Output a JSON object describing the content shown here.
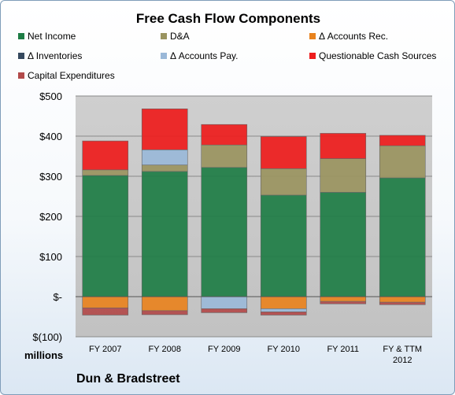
{
  "chart_data": {
    "type": "bar",
    "stacked": true,
    "title": "Free Cash Flow Components",
    "categories": [
      "FY 2007",
      "FY 2008",
      "FY 2009",
      "FY 2010",
      "FY 2011",
      "FY & TTM\n2012"
    ],
    "series": [
      {
        "name": "Net Income",
        "color": "#1e7d45",
        "values": [
          302,
          312,
          322,
          253,
          260,
          296
        ]
      },
      {
        "name": "D&A",
        "color": "#9a9460",
        "values": [
          14,
          16,
          56,
          66,
          84,
          80
        ]
      },
      {
        "name": "Δ Accounts Rec.",
        "color": "#e8821e",
        "values": [
          -28,
          -35,
          0,
          -30,
          -12,
          -14
        ]
      },
      {
        "name": "Δ Inventories",
        "color": "#35495e",
        "values": [
          0,
          0,
          0,
          0,
          0,
          0
        ]
      },
      {
        "name": "Δ Accounts Pay.",
        "color": "#9ab8d8",
        "values": [
          0,
          38,
          -30,
          -8,
          0,
          0
        ]
      },
      {
        "name": "Questionable Cash Sources",
        "color": "#ee1c1c",
        "values": [
          72,
          102,
          51,
          80,
          63,
          26
        ]
      },
      {
        "name": "Capital Expenditures",
        "color": "#b24a4a",
        "values": [
          -18,
          -10,
          -10,
          -8,
          -6,
          -6
        ]
      }
    ],
    "ylim": [
      -100,
      500
    ],
    "yticks": [
      500,
      400,
      300,
      200,
      100,
      0,
      -100
    ],
    "ytick_labels": [
      "$500",
      "$400",
      "$300",
      "$200",
      "$100",
      "$-",
      "$(100)"
    ],
    "ylabel": "",
    "xlabel": "",
    "units_label": "millions",
    "company": "Dun & Bradstreet",
    "legend_position": "top",
    "grid": true
  },
  "colors": {
    "plot_background": "#c8c8c8",
    "gridline": "#8a8a8a",
    "border": "#7f9db9"
  }
}
